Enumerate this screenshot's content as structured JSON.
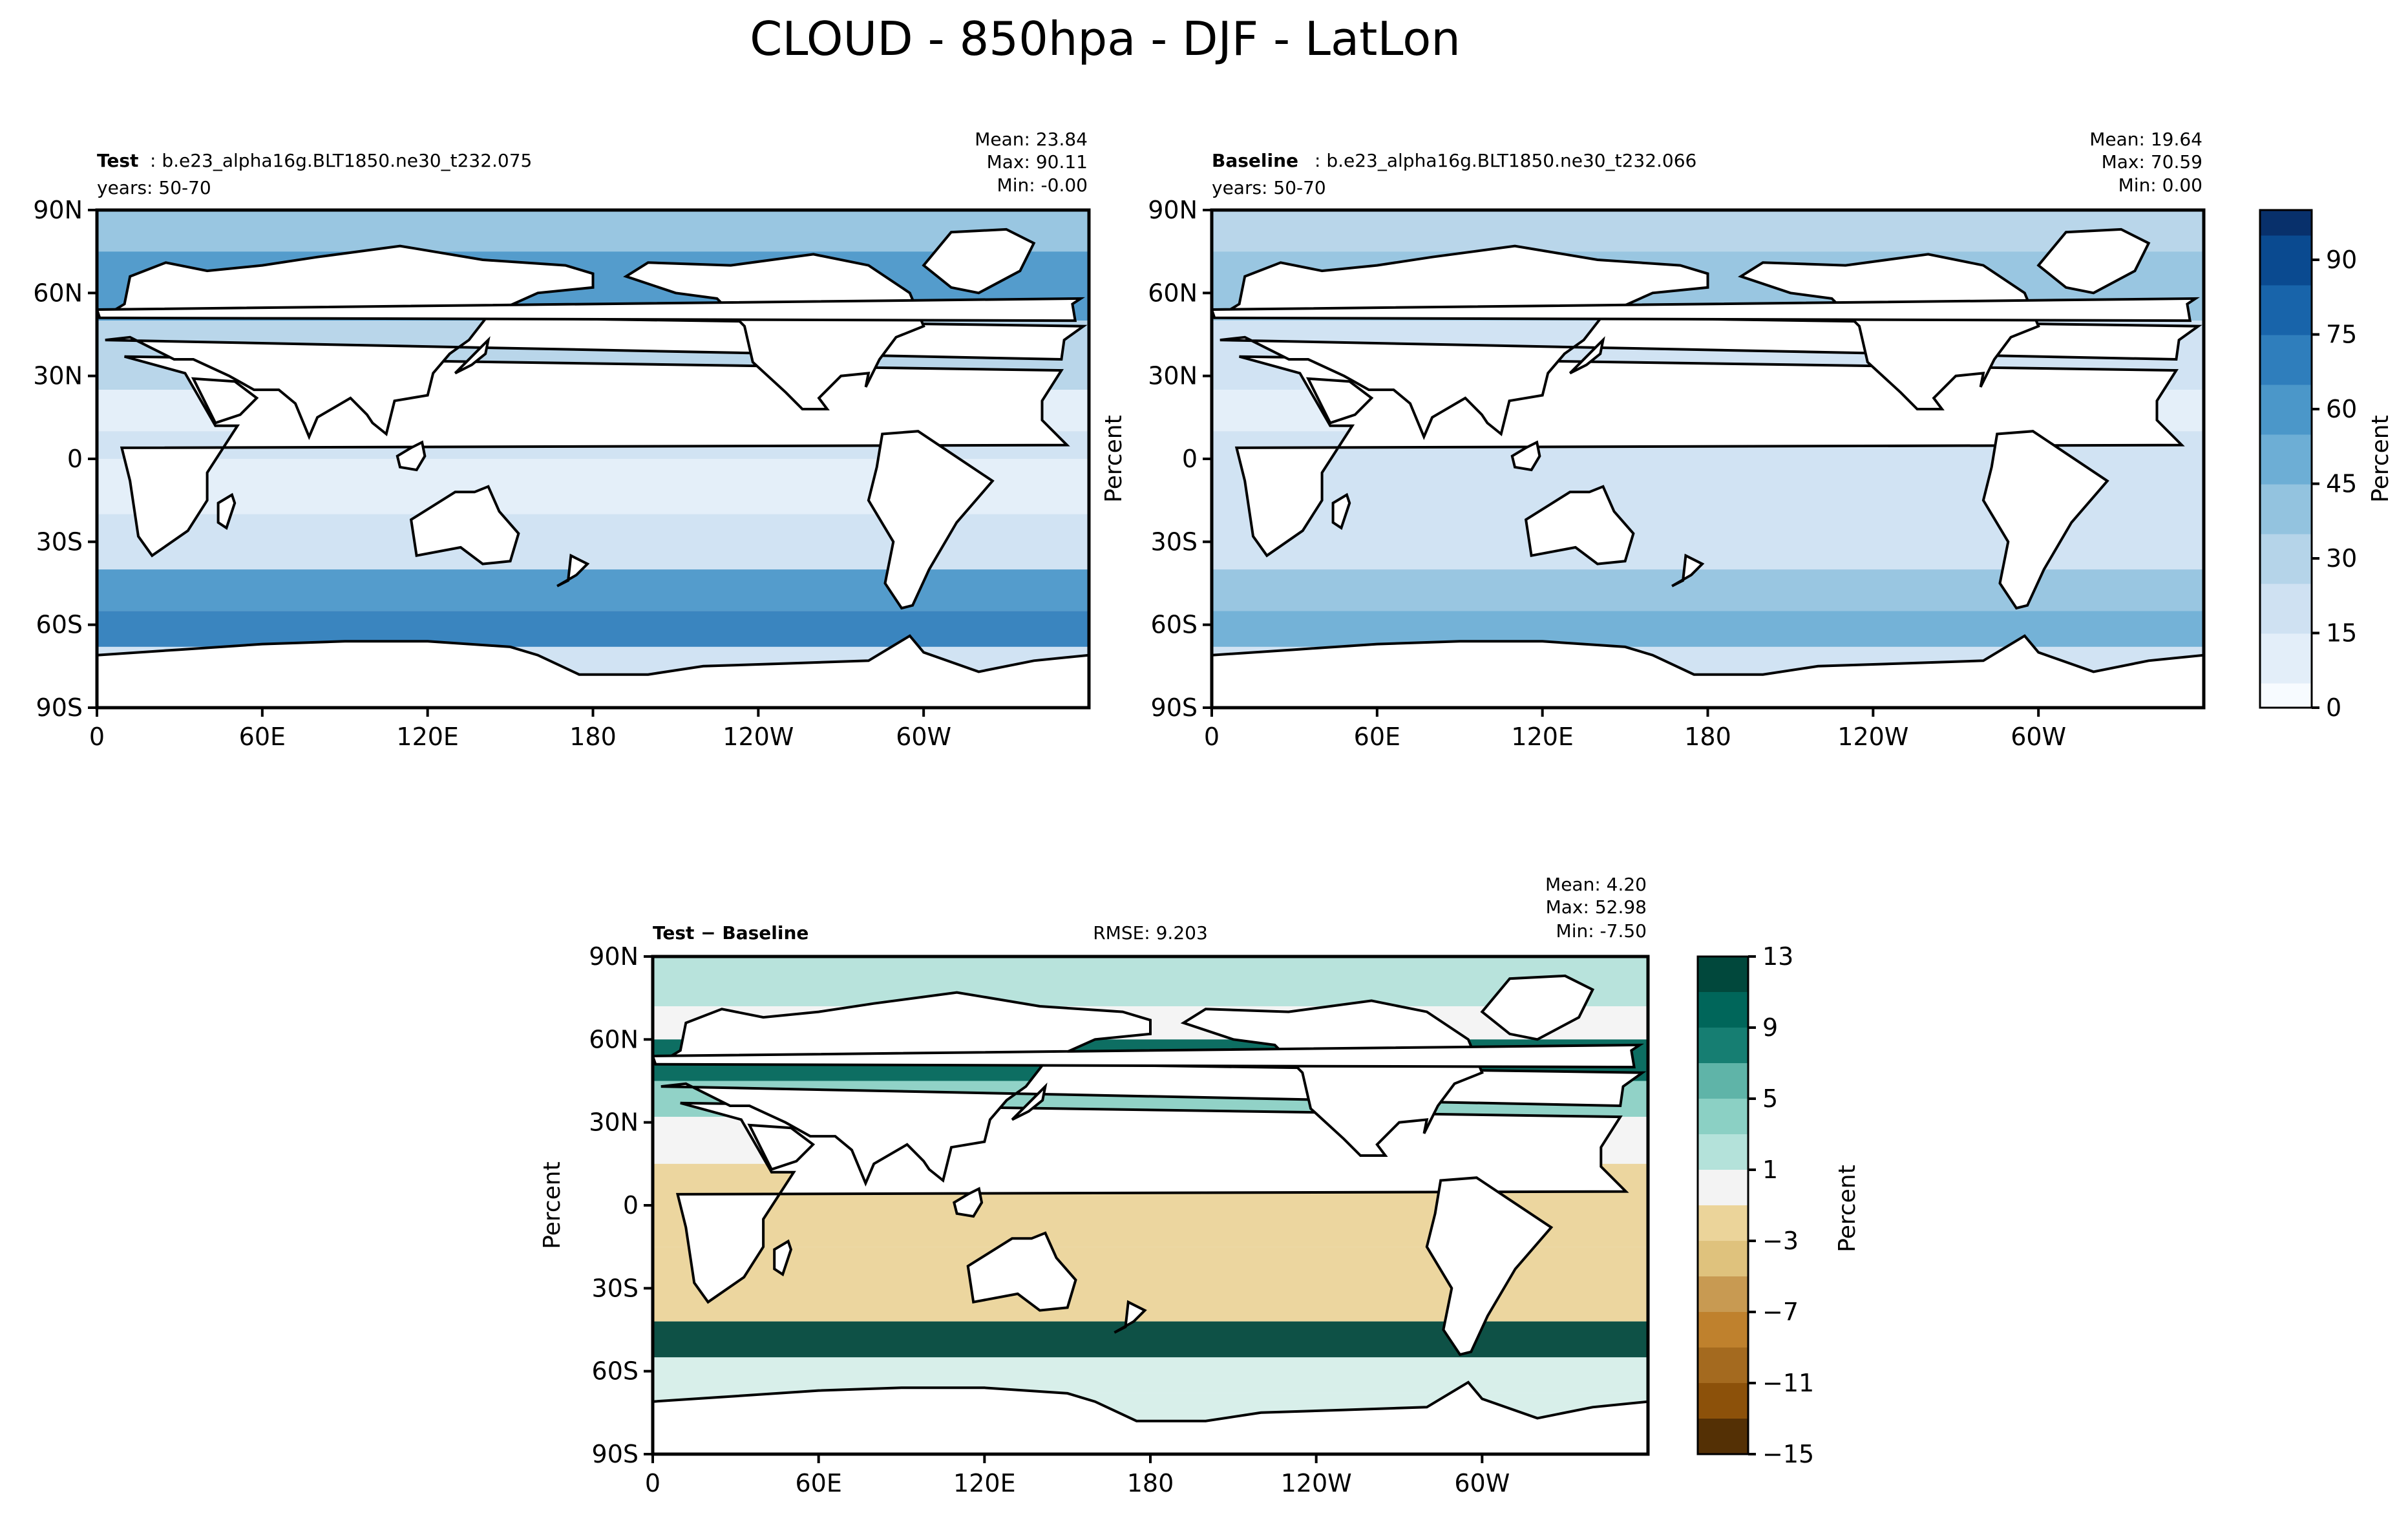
{
  "figure_title": "CLOUD - 850hpa - DJF - LatLon",
  "chart_data": [
    {
      "type": "heatmap",
      "panel": "test",
      "label_bold": "Test",
      "label_case": ": b.e23_alpha16g.BLT1850.ne30_t232.075",
      "label_years": "years: 50-70",
      "stats": {
        "mean": "Mean: 23.84",
        "max": "Max: 90.11",
        "min": "Min: -0.00"
      },
      "ylabel": "",
      "xticks": [
        "0",
        "60E",
        "120E",
        "180",
        "120W",
        "60W"
      ],
      "yticks": [
        "90N",
        "60N",
        "30N",
        "0",
        "30S",
        "60S",
        "90S"
      ],
      "zonal_bands": [
        {
          "lat_from": 90,
          "lat_to": 75,
          "value": 35
        },
        {
          "lat_from": 75,
          "lat_to": 50,
          "value": 55
        },
        {
          "lat_from": 50,
          "lat_to": 25,
          "value": 25
        },
        {
          "lat_from": 25,
          "lat_to": 10,
          "value": 12
        },
        {
          "lat_from": 10,
          "lat_to": 0,
          "value": 22
        },
        {
          "lat_from": 0,
          "lat_to": -20,
          "value": 14
        },
        {
          "lat_from": -20,
          "lat_to": -40,
          "value": 22
        },
        {
          "lat_from": -40,
          "lat_to": -55,
          "value": 55
        },
        {
          "lat_from": -55,
          "lat_to": -68,
          "value": 65
        },
        {
          "lat_from": -68,
          "lat_to": -90,
          "value": 20
        }
      ]
    },
    {
      "type": "heatmap",
      "panel": "baseline",
      "label_bold": "Baseline",
      "label_case": ": b.e23_alpha16g.BLT1850.ne30_t232.066",
      "label_years": "years: 50-70",
      "stats": {
        "mean": "Mean: 19.64",
        "max": "Max: 70.59",
        "min": "Min:  0.00"
      },
      "ylabel": "Percent",
      "xticks": [
        "0",
        "60E",
        "120E",
        "180",
        "120W",
        "60W"
      ],
      "yticks": [
        "90N",
        "60N",
        "30N",
        "0",
        "30S",
        "60S",
        "90S"
      ],
      "colorbar": {
        "label": "Percent",
        "ticks": [
          "0",
          "15",
          "30",
          "45",
          "60",
          "75",
          "90"
        ],
        "min": 0,
        "max": 100
      },
      "zonal_bands": [
        {
          "lat_from": 90,
          "lat_to": 75,
          "value": 25
        },
        {
          "lat_from": 75,
          "lat_to": 50,
          "value": 38
        },
        {
          "lat_from": 50,
          "lat_to": 25,
          "value": 20
        },
        {
          "lat_from": 25,
          "lat_to": 10,
          "value": 12
        },
        {
          "lat_from": 10,
          "lat_to": 0,
          "value": 24
        },
        {
          "lat_from": 0,
          "lat_to": -20,
          "value": 15
        },
        {
          "lat_from": -20,
          "lat_to": -40,
          "value": 20
        },
        {
          "lat_from": -40,
          "lat_to": -55,
          "value": 38
        },
        {
          "lat_from": -55,
          "lat_to": -68,
          "value": 45
        },
        {
          "lat_from": -68,
          "lat_to": -90,
          "value": 18
        }
      ]
    },
    {
      "type": "heatmap",
      "panel": "difference",
      "label_bold": "Test − Baseline",
      "rmse": "RMSE: 9.203",
      "stats": {
        "mean": "Mean:  4.20",
        "max": "Max: 52.98",
        "min": "Min: -7.50"
      },
      "ylabel": "Percent",
      "xticks": [
        "0",
        "60E",
        "120E",
        "180",
        "120W",
        "60W"
      ],
      "yticks": [
        "90N",
        "60N",
        "30N",
        "0",
        "30S",
        "60S",
        "90S"
      ],
      "colorbar": {
        "label": "Percent",
        "ticks": [
          "13",
          "9",
          "5",
          "1",
          "−3",
          "−7",
          "−11",
          "−15"
        ],
        "levels": [
          13,
          11,
          9,
          7,
          5,
          3,
          1,
          -1,
          -3,
          -5,
          -7,
          -9,
          -11,
          -13,
          -15
        ]
      },
      "zonal_bands": [
        {
          "lat_from": 90,
          "lat_to": 72,
          "value": 2
        },
        {
          "lat_from": 72,
          "lat_to": 60,
          "value": 0
        },
        {
          "lat_from": 60,
          "lat_to": 45,
          "value": 10
        },
        {
          "lat_from": 45,
          "lat_to": 32,
          "value": 4
        },
        {
          "lat_from": 32,
          "lat_to": 15,
          "value": 0
        },
        {
          "lat_from": 15,
          "lat_to": -15,
          "value": -3
        },
        {
          "lat_from": -15,
          "lat_to": -42,
          "value": -2
        },
        {
          "lat_from": -42,
          "lat_to": -55,
          "value": 11
        },
        {
          "lat_from": -55,
          "lat_to": -68,
          "value": 1
        },
        {
          "lat_from": -68,
          "lat_to": -90,
          "value": 1
        }
      ]
    }
  ],
  "colors": {
    "blues": [
      "#f7fbff",
      "#e3eef9",
      "#cfe1f2",
      "#b5d4e9",
      "#93c3df",
      "#6daed5",
      "#4b97c9",
      "#2f7ebc",
      "#1864aa",
      "#0a4a90",
      "#08306b"
    ],
    "brbg_pos": [
      "#f3f3f3",
      "#d6eee9",
      "#b4e2da",
      "#8bd0c4",
      "#5fb4a8",
      "#35978f",
      "#167e72",
      "#00665a",
      "#01483c"
    ],
    "brbg_neg": [
      "#f3f3f3",
      "#f6e8c3",
      "#ebd49a",
      "#dfc27d",
      "#c89a52",
      "#bf812d",
      "#a46a1f",
      "#8c510a",
      "#543005"
    ]
  }
}
